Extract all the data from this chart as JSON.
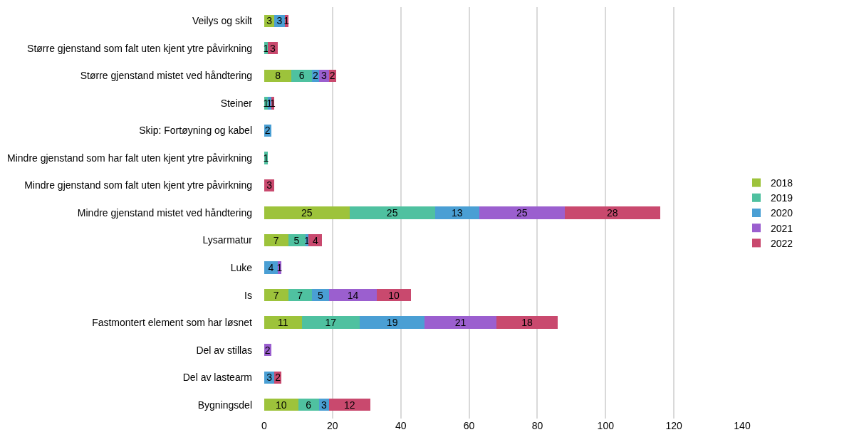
{
  "chart_data": {
    "type": "bar",
    "orientation": "horizontal",
    "stacked": true,
    "data_labels": true,
    "grid": "x",
    "legend": "right",
    "categories": [
      "Veilys og skilt",
      "Større gjenstand som falt uten kjent ytre påvirkning",
      "Større gjenstand mistet ved håndtering",
      "Steiner",
      "Skip: Fortøyning og kabel",
      "Mindre gjenstand som har falt uten kjent ytre påvirkning",
      "Mindre gjenstand som falt uten kjent ytre påvirkning",
      "Mindre gjenstand mistet ved håndtering",
      "Lysarmatur",
      "Luke",
      "Is",
      "Fastmontert element som har løsnet",
      "Del av stillas",
      "Del av lastearm",
      "Bygningsdel"
    ],
    "xlim": [
      0,
      140
    ],
    "xticks": [
      0,
      20,
      40,
      60,
      80,
      100,
      120,
      140
    ],
    "series": [
      {
        "name": "2018",
        "color": "#9dc33b",
        "values": [
          3,
          null,
          8,
          null,
          null,
          null,
          null,
          25,
          7,
          null,
          7,
          11,
          null,
          null,
          10
        ]
      },
      {
        "name": "2019",
        "color": "#4fc1a0",
        "values": [
          null,
          1,
          6,
          1,
          null,
          1,
          null,
          25,
          5,
          null,
          7,
          17,
          null,
          null,
          6
        ]
      },
      {
        "name": "2020",
        "color": "#4a9fd4",
        "values": [
          3,
          null,
          2,
          1,
          2,
          null,
          null,
          13,
          1,
          4,
          5,
          19,
          null,
          3,
          3
        ]
      },
      {
        "name": "2021",
        "color": "#9b5fcf",
        "values": [
          null,
          null,
          3,
          null,
          null,
          null,
          null,
          25,
          null,
          1,
          14,
          21,
          2,
          null,
          null
        ]
      },
      {
        "name": "2022",
        "color": "#c9496e",
        "values": [
          1,
          3,
          2,
          1,
          null,
          null,
          3,
          28,
          4,
          null,
          10,
          18,
          null,
          2,
          12
        ]
      }
    ]
  }
}
